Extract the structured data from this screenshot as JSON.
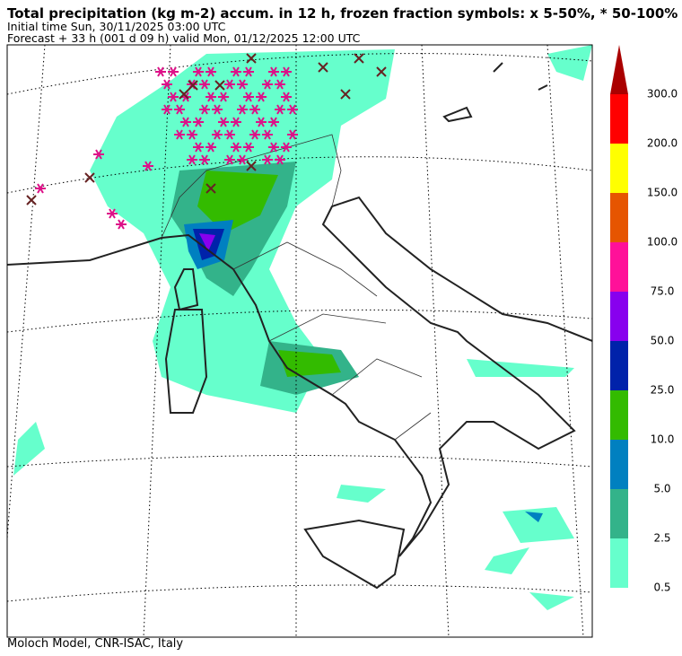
{
  "header": {
    "title": "Total precipitation (kg m-2) accum. in 12 h, frozen fraction symbols: x 5-50%, * 50-100%",
    "initial_time": "Initial time  Sun, 30/11/2025  03:00 UTC",
    "forecast": "Forecast  +  33 h  (001 d 09 h)  valid Mon, 01/12/2025 12:00 UTC"
  },
  "colorbar": {
    "labels": [
      "0.5",
      "2.5",
      "5.0",
      "10.0",
      "25.0",
      "50.0",
      "75.0",
      "100.0",
      "150.0",
      "200.0",
      "300.0"
    ],
    "colors": [
      "#66ffcc",
      "#33b38a",
      "#0080c0",
      "#33bb00",
      "#0022aa",
      "#8800ee",
      "#ff1199",
      "#e65500",
      "#ffff00",
      "#ff0000"
    ],
    "extend_color": "#aa0000"
  },
  "footer": "Moloch Model, CNR-ISAC, Italy"
}
